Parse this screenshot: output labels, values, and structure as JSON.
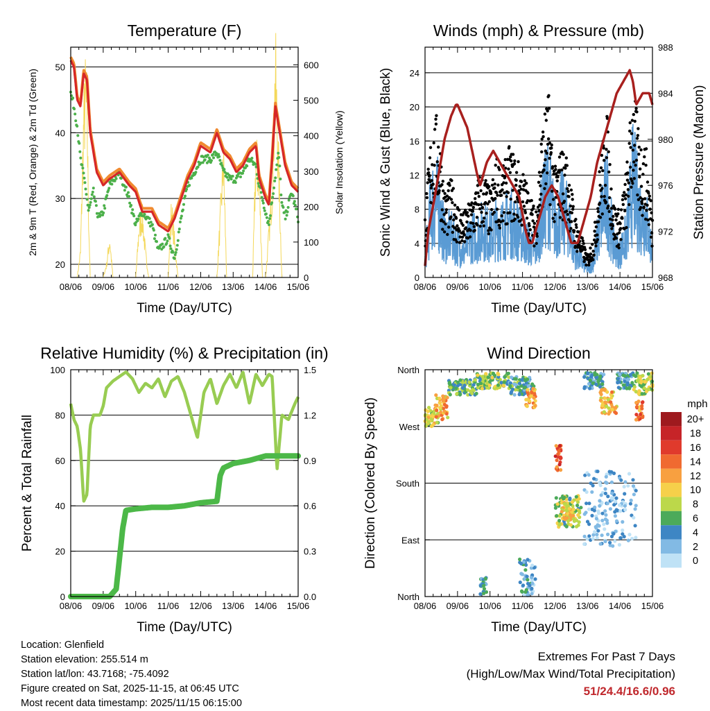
{
  "colors": {
    "t2m": "#d62728",
    "t9m": "#f08a30",
    "td": "#4cb04a",
    "solar": "#f4d85a",
    "gust": "#000000",
    "wind": "#5a9bd4",
    "pressure": "#a8201e",
    "rh": "#98cc52",
    "precip": "#4cb848"
  },
  "chart_data": [
    {
      "type": "line",
      "title": "Temperature (F)",
      "xlabel": "Time (Day/UTC)",
      "ylabel": "2m & 9m T (Red, Orange) & 2m Td (Green)",
      "y2label": "Solar Insolation (Yellow)",
      "xticks": [
        "08/06",
        "09/06",
        "10/06",
        "11/06",
        "12/06",
        "13/06",
        "14/06",
        "15/06"
      ],
      "ylim": [
        18,
        53
      ],
      "yticks": [
        20,
        30,
        40,
        50
      ],
      "y2lim": [
        0,
        650
      ],
      "y2ticks": [
        0,
        100,
        200,
        300,
        400,
        500,
        600
      ],
      "series": [
        {
          "name": "2m T",
          "x": [
            0,
            0.1,
            0.2,
            0.3,
            0.4,
            0.5,
            0.6,
            0.8,
            1.0,
            1.2,
            1.5,
            1.8,
            2.0,
            2.2,
            2.5,
            2.7,
            3.0,
            3.2,
            3.4,
            3.6,
            3.8,
            4.0,
            4.3,
            4.5,
            4.7,
            4.9,
            5.1,
            5.3,
            5.5,
            5.7,
            5.8,
            6.0,
            6.1,
            6.2,
            6.3,
            6.5,
            6.6,
            6.8,
            7.0
          ],
          "values": [
            51,
            50,
            45,
            44,
            49,
            48,
            40,
            34,
            32,
            33,
            34,
            32,
            31,
            28,
            28,
            26,
            25,
            27,
            30,
            33,
            35,
            38,
            37,
            40,
            37,
            36,
            34,
            35,
            37,
            38,
            33,
            30,
            29,
            36,
            44,
            38,
            35,
            32,
            31
          ]
        },
        {
          "name": "9m T",
          "x": [
            0,
            0.1,
            0.2,
            0.3,
            0.4,
            0.5,
            0.6,
            0.8,
            1.0,
            1.2,
            1.5,
            1.8,
            2.0,
            2.2,
            2.5,
            2.7,
            3.0,
            3.2,
            3.4,
            3.6,
            3.8,
            4.0,
            4.3,
            4.5,
            4.7,
            4.9,
            5.1,
            5.3,
            5.5,
            5.7,
            5.8,
            6.0,
            6.1,
            6.2,
            6.3,
            6.5,
            6.6,
            6.8,
            7.0
          ],
          "values": [
            51.5,
            50.5,
            45.5,
            44.5,
            49.5,
            48.5,
            40.5,
            34.5,
            32.5,
            33.5,
            34.5,
            32.5,
            31.5,
            28.5,
            28.5,
            26.5,
            25.5,
            27.5,
            30.5,
            33.5,
            35.5,
            38.5,
            37.5,
            40.5,
            37.5,
            36.5,
            34.5,
            35.5,
            37.5,
            38.5,
            33.5,
            30.5,
            29.5,
            36.5,
            44.5,
            38.5,
            35.5,
            32.5,
            31.5
          ]
        },
        {
          "name": "2m Td",
          "x": [
            0,
            0.1,
            0.2,
            0.3,
            0.45,
            0.55,
            0.7,
            0.8,
            0.9,
            1.0,
            1.2,
            1.5,
            1.8,
            2.0,
            2.2,
            2.5,
            2.7,
            3.0,
            3.2,
            3.4,
            3.6,
            3.8,
            4.0,
            4.3,
            4.5,
            4.7,
            4.9,
            5.1,
            5.3,
            5.5,
            5.7,
            5.8,
            6.0,
            6.1,
            6.2,
            6.4,
            6.5,
            6.6,
            6.8,
            7.0
          ],
          "values": [
            46,
            44,
            41,
            36,
            32,
            28,
            31,
            28,
            27,
            28,
            32,
            34,
            30,
            26,
            28,
            26,
            22,
            24,
            21,
            27,
            32,
            34,
            36,
            36,
            37,
            34,
            33,
            33,
            34,
            36,
            35,
            32,
            28,
            26,
            30,
            37,
            29,
            27,
            31,
            27
          ]
        },
        {
          "name": "Solar",
          "x": [
            0,
            0.1,
            0.2,
            0.3,
            0.4,
            0.45,
            0.5,
            0.55,
            0.6,
            0.8,
            1.0,
            1.1,
            1.2,
            1.3,
            1.5,
            2.0,
            2.1,
            2.2,
            2.3,
            2.4,
            2.5,
            3.0,
            3.1,
            3.3,
            3.6,
            3.8,
            4.0,
            4.5,
            4.6,
            4.7,
            4.8,
            5.0,
            5.6,
            5.7,
            5.8,
            5.9,
            6.0,
            6.2,
            6.3,
            6.4,
            6.5,
            6.6,
            6.8,
            7.0
          ],
          "values": [
            0,
            0,
            0,
            80,
            500,
            580,
            540,
            200,
            0,
            0,
            0,
            40,
            120,
            0,
            0,
            0,
            150,
            200,
            80,
            0,
            0,
            0,
            220,
            0,
            0,
            0,
            0,
            0,
            180,
            380,
            0,
            0,
            0,
            380,
            320,
            0,
            0,
            280,
            660,
            350,
            0,
            0,
            0,
            0
          ]
        }
      ]
    },
    {
      "type": "line",
      "title": "Winds (mph) & Pressure (mb)",
      "xlabel": "Time (Day/UTC)",
      "ylabel": "Sonic Wind & Gust (Blue, Black)",
      "y2label": "Station Pressure (Maroon)",
      "xticks": [
        "08/06",
        "09/06",
        "10/06",
        "11/06",
        "12/06",
        "13/06",
        "14/06",
        "15/06"
      ],
      "ylim": [
        0,
        27
      ],
      "yticks": [
        0,
        4,
        8,
        12,
        16,
        20,
        24
      ],
      "y2lim": [
        968,
        988
      ],
      "y2ticks": [
        968,
        972,
        976,
        980,
        984,
        988
      ],
      "series": [
        {
          "name": "Gust",
          "x": [
            0,
            0.2,
            0.4,
            0.6,
            0.8,
            1.0,
            1.2,
            1.4,
            1.6,
            1.8,
            2.0,
            2.2,
            2.4,
            2.6,
            2.8,
            3.0,
            3.2,
            3.4,
            3.6,
            3.8,
            4.0,
            4.2,
            4.4,
            4.6,
            4.8,
            5.0,
            5.2,
            5.4,
            5.6,
            5.8,
            6.0,
            6.2,
            6.4,
            6.6,
            6.8,
            7.0
          ],
          "values": [
            6,
            14,
            15,
            8,
            9,
            7,
            6,
            7,
            9,
            10,
            8,
            11,
            10,
            12,
            11,
            10,
            8,
            6,
            14,
            17,
            10,
            12,
            11,
            6,
            4,
            2,
            4,
            11,
            15,
            7,
            6,
            10,
            18,
            13,
            12,
            6
          ]
        },
        {
          "name": "Wind",
          "x": [
            0,
            0.2,
            0.4,
            0.6,
            0.8,
            1.0,
            1.2,
            1.4,
            1.6,
            1.8,
            2.0,
            2.2,
            2.4,
            2.6,
            2.8,
            3.0,
            3.2,
            3.4,
            3.6,
            3.8,
            4.0,
            4.2,
            4.4,
            4.6,
            4.8,
            5.0,
            5.2,
            5.4,
            5.6,
            5.8,
            6.0,
            6.2,
            6.4,
            6.6,
            6.8,
            7.0
          ],
          "values": [
            2,
            9,
            9,
            5,
            5,
            4,
            3,
            5,
            5,
            6,
            5,
            6,
            6,
            7,
            6,
            5,
            4,
            3,
            8,
            11,
            6,
            8,
            7,
            3,
            2,
            1,
            2,
            7,
            10,
            4,
            3,
            5,
            12,
            8,
            7,
            3
          ]
        },
        {
          "name": "Pressure",
          "x": [
            0,
            0.1,
            0.3,
            0.6,
            0.8,
            0.95,
            1.0,
            1.3,
            1.6,
            1.7,
            1.9,
            2.1,
            2.3,
            2.5,
            2.7,
            2.9,
            3.1,
            3.2,
            3.3,
            3.5,
            3.7,
            3.9,
            4.1,
            4.3,
            4.5,
            4.7,
            4.9,
            5.1,
            5.3,
            5.5,
            5.7,
            5.9,
            6.1,
            6.3,
            6.4,
            6.5,
            6.7,
            6.9,
            7.0
          ],
          "values": [
            969,
            972,
            975,
            980,
            982,
            983,
            983,
            981,
            977,
            976,
            978,
            979,
            978,
            977,
            976,
            975,
            972,
            971,
            971,
            973,
            975,
            976,
            975,
            973,
            971,
            971,
            973,
            975,
            978,
            980,
            982,
            984,
            985,
            986,
            985,
            983,
            984,
            984,
            983
          ]
        }
      ]
    },
    {
      "type": "line",
      "title": "Relative Humidity (%) & Precipitation (in)",
      "xlabel": "Time (Day/UTC)",
      "ylabel": "Percent & Total Rainfall",
      "xticks": [
        "08/06",
        "09/06",
        "10/06",
        "11/06",
        "12/06",
        "13/06",
        "14/06",
        "15/06"
      ],
      "ylim": [
        0,
        100
      ],
      "yticks": [
        0,
        20,
        40,
        60,
        80,
        100
      ],
      "y2lim": [
        0,
        1.5
      ],
      "y2ticks": [
        "0.0",
        "0.3",
        "0.6",
        "0.9",
        "1.2",
        "1.5"
      ],
      "series": [
        {
          "name": "RH",
          "x": [
            0,
            0.1,
            0.2,
            0.3,
            0.4,
            0.5,
            0.6,
            0.7,
            0.9,
            1.0,
            1.1,
            1.3,
            1.5,
            1.7,
            1.9,
            2.1,
            2.3,
            2.5,
            2.7,
            2.9,
            3.1,
            3.3,
            3.5,
            3.7,
            3.9,
            4.1,
            4.3,
            4.5,
            4.7,
            4.9,
            5.1,
            5.3,
            5.5,
            5.7,
            5.9,
            6.1,
            6.2,
            6.35,
            6.5,
            6.7,
            6.9,
            7.0
          ],
          "values": [
            85,
            78,
            75,
            65,
            42,
            45,
            75,
            80,
            80,
            84,
            92,
            95,
            97,
            99,
            96,
            90,
            94,
            92,
            96,
            88,
            95,
            97,
            90,
            80,
            70,
            90,
            96,
            85,
            93,
            98,
            92,
            99,
            85,
            98,
            93,
            98,
            97,
            56,
            80,
            78,
            85,
            88
          ]
        },
        {
          "name": "Precipitation",
          "x": [
            0,
            0.5,
            1.0,
            1.2,
            1.4,
            1.5,
            1.6,
            1.7,
            2.0,
            2.5,
            3.0,
            3.5,
            4.0,
            4.5,
            4.6,
            4.7,
            5.0,
            5.5,
            6.0,
            6.5,
            7.0
          ],
          "values": [
            0,
            0,
            0,
            0,
            0.05,
            0.25,
            0.45,
            0.57,
            0.58,
            0.59,
            0.59,
            0.6,
            0.62,
            0.63,
            0.8,
            0.85,
            0.88,
            0.9,
            0.93,
            0.93,
            0.93
          ]
        }
      ]
    },
    {
      "type": "scatter",
      "title": "Wind Direction",
      "xlabel": "Time (Day/UTC)",
      "ylabel": "Direction (Colored By Speed)",
      "xticks": [
        "08/06",
        "09/06",
        "10/06",
        "11/06",
        "12/06",
        "13/06",
        "14/06",
        "15/06"
      ],
      "yticks": [
        "North",
        "East",
        "South",
        "West",
        "North"
      ],
      "ylim": [
        0,
        360
      ],
      "legend_title": "mph",
      "legend_labels": [
        "20+",
        "18",
        "16",
        "14",
        "12",
        "10",
        "8",
        "6",
        "4",
        "2",
        "0"
      ],
      "legend_colors": [
        "#9e1a1e",
        "#c62428",
        "#e03a2c",
        "#f06a30",
        "#f8a040",
        "#f6d04a",
        "#bcd84a",
        "#4caa5a",
        "#3e86c4",
        "#82bae4",
        "#bfe2f6"
      ],
      "segments": [
        {
          "x0": 0.0,
          "x1": 0.4,
          "d0": 270,
          "d1": 300,
          "s": 9
        },
        {
          "x0": 0.3,
          "x1": 0.7,
          "d0": 280,
          "d1": 320,
          "s": 11
        },
        {
          "x0": 0.7,
          "x1": 1.6,
          "d0": 320,
          "d1": 345,
          "s": 6
        },
        {
          "x0": 1.6,
          "x1": 2.6,
          "d0": 330,
          "d1": 355,
          "s": 7
        },
        {
          "x0": 2.6,
          "x1": 3.4,
          "d0": 320,
          "d1": 350,
          "s": 5
        },
        {
          "x0": 3.1,
          "x1": 3.4,
          "d0": 300,
          "d1": 330,
          "s": 12
        },
        {
          "x0": 4.0,
          "x1": 4.2,
          "d0": 200,
          "d1": 240,
          "s": 15
        },
        {
          "x0": 4.0,
          "x1": 4.8,
          "d0": 110,
          "d1": 160,
          "s": 7
        },
        {
          "x0": 4.2,
          "x1": 4.6,
          "d0": 120,
          "d1": 150,
          "s": 10
        },
        {
          "x0": 4.9,
          "x1": 5.5,
          "d0": 330,
          "d1": 355,
          "s": 4
        },
        {
          "x0": 5.4,
          "x1": 5.9,
          "d0": 290,
          "d1": 330,
          "s": 11
        },
        {
          "x0": 5.9,
          "x1": 6.4,
          "d0": 330,
          "d1": 355,
          "s": 4
        },
        {
          "x0": 6.4,
          "x1": 7.0,
          "d0": 320,
          "d1": 355,
          "s": 8
        },
        {
          "x0": 6.5,
          "x1": 6.7,
          "d0": 280,
          "d1": 310,
          "s": 13
        },
        {
          "x0": 4.9,
          "x1": 6.5,
          "d0": 80,
          "d1": 200,
          "s": 2
        },
        {
          "x0": 2.9,
          "x1": 3.4,
          "d0": 0,
          "d1": 60,
          "s": 3
        },
        {
          "x0": 1.7,
          "x1": 1.9,
          "d0": 0,
          "d1": 30,
          "s": 4
        }
      ]
    }
  ],
  "info": {
    "location": "Location: Glenfield",
    "elevation": "Station elevation: 255.514 m",
    "latlon": "Station lat/lon: 43.7168; -75.4092",
    "created": "Figure created on Sat, 2025-11-15, at 06:45 UTC",
    "recent": "Most recent data timestamp: 2025/11/15 06:15:00"
  },
  "extremes": {
    "title": "Extremes For Past 7 Days",
    "subtitle": "(High/Low/Max Wind/Total Precipitation)",
    "values": "51/24.4/16.6/0.96"
  }
}
